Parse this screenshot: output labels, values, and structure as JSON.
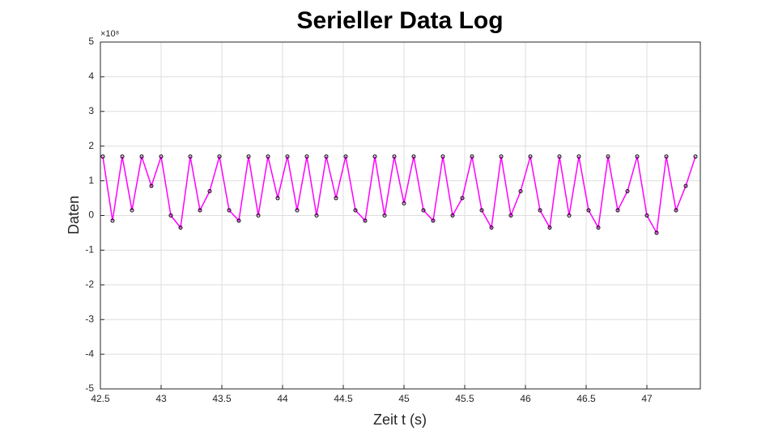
{
  "chart_data": {
    "type": "line",
    "title": "Serieller Data Log",
    "xlabel": "Zeit t (s)",
    "ylabel": "Daten",
    "y_exponent": "×10⁸",
    "x": [
      42.52,
      42.6,
      42.68,
      42.76,
      42.84,
      42.92,
      43.0,
      43.08,
      43.16,
      43.24,
      43.32,
      43.4,
      43.48,
      43.56,
      43.64,
      43.72,
      43.8,
      43.88,
      43.96,
      44.04,
      44.12,
      44.2,
      44.28,
      44.36,
      44.44,
      44.52,
      44.6,
      44.68,
      44.76,
      44.84,
      44.92,
      45.0,
      45.08,
      45.16,
      45.24,
      45.32,
      45.4,
      45.48,
      45.56,
      45.64,
      45.72,
      45.8,
      45.88,
      45.96,
      46.04,
      46.12,
      46.2,
      46.28,
      46.36,
      46.44,
      46.52,
      46.6,
      46.68,
      46.76,
      46.84,
      46.92,
      47.0,
      47.08,
      47.16,
      47.24,
      47.32,
      47.4
    ],
    "series": [
      {
        "color": "#ff00ff",
        "marker_color": "#000000",
        "values": [
          1.7,
          -0.15,
          1.7,
          0.15,
          1.7,
          0.85,
          1.7,
          0,
          -0.35,
          1.7,
          0.15,
          0.7,
          1.7,
          0.15,
          -0.15,
          1.7,
          0,
          1.7,
          0.5,
          1.7,
          0.15,
          1.7,
          0,
          1.7,
          0.5,
          1.7,
          0.15,
          -0.15,
          1.7,
          0,
          1.7,
          0.35,
          1.7,
          0.15,
          -0.15,
          1.7,
          0,
          0.5,
          1.7,
          0.15,
          -0.35,
          1.7,
          0,
          0.7,
          1.7,
          0.15,
          -0.35,
          1.7,
          0,
          1.7,
          0.15,
          -0.35,
          1.7,
          0.15,
          0.7,
          1.7,
          0,
          -0.5,
          1.7,
          0.15,
          0.85,
          1.7
        ]
      }
    ],
    "xlim": [
      42.5,
      47.44
    ],
    "ylim": [
      -5,
      5
    ],
    "xticks": [
      42.5,
      43,
      43.5,
      44,
      44.5,
      45,
      45.5,
      46,
      46.5,
      47
    ],
    "yticks": [
      -5,
      -4,
      -3,
      -2,
      -1,
      0,
      1,
      2,
      3,
      4,
      5
    ],
    "grid": true
  }
}
